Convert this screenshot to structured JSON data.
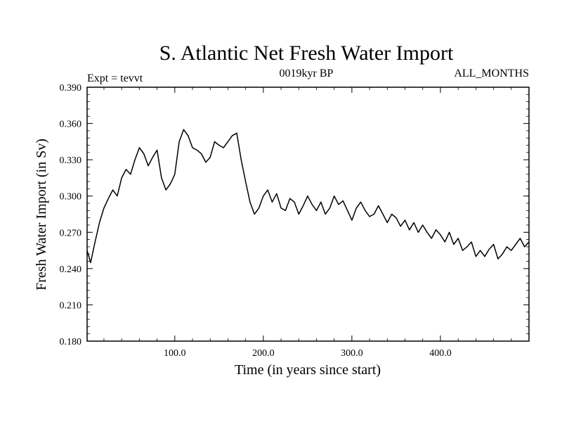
{
  "header": {
    "title": "S. Atlantic Net Fresh Water Import",
    "left_label": "Expt = tevvt",
    "center_label": "0019kyr BP",
    "right_label": "ALL_MONTHS"
  },
  "chart_data": {
    "type": "line",
    "title": "S. Atlantic Net Fresh Water Import",
    "xlabel": "Time (in years since start)",
    "ylabel": "Fresh Water Import (in Sv)",
    "xlim": [
      1,
      500
    ],
    "ylim": [
      0.18,
      0.39
    ],
    "xticks": [
      100,
      200,
      300,
      400
    ],
    "xtick_labels": [
      "100.0",
      "200.0",
      "300.0",
      "400.0"
    ],
    "yticks": [
      0.18,
      0.21,
      0.24,
      0.27,
      0.3,
      0.33,
      0.36,
      0.39
    ],
    "ytick_labels": [
      "0.180",
      "0.210",
      "0.240",
      "0.270",
      "0.300",
      "0.330",
      "0.360",
      "0.390"
    ],
    "grid": false,
    "line_color": "#000000",
    "series": [
      {
        "x": [
          1,
          5,
          10,
          15,
          20,
          25,
          30,
          35,
          40,
          45,
          50,
          55,
          60,
          65,
          70,
          75,
          80,
          85,
          90,
          95,
          100,
          105,
          110,
          115,
          120,
          125,
          130,
          135,
          140,
          145,
          150,
          155,
          160,
          165,
          170,
          175,
          180,
          185,
          190,
          195,
          200,
          205,
          210,
          215,
          220,
          225,
          230,
          235,
          240,
          245,
          250,
          255,
          260,
          265,
          270,
          275,
          280,
          285,
          290,
          295,
          300,
          305,
          310,
          315,
          320,
          325,
          330,
          335,
          340,
          345,
          350,
          355,
          360,
          365,
          370,
          375,
          380,
          385,
          390,
          395,
          400,
          405,
          410,
          415,
          420,
          425,
          430,
          435,
          440,
          445,
          450,
          455,
          460,
          465,
          470,
          475,
          480,
          485,
          490,
          495,
          500
        ],
        "values": [
          0.255,
          0.245,
          0.262,
          0.278,
          0.29,
          0.298,
          0.305,
          0.3,
          0.315,
          0.322,
          0.318,
          0.33,
          0.34,
          0.335,
          0.325,
          0.332,
          0.338,
          0.315,
          0.305,
          0.31,
          0.318,
          0.345,
          0.355,
          0.35,
          0.34,
          0.338,
          0.335,
          0.328,
          0.332,
          0.345,
          0.342,
          0.34,
          0.345,
          0.35,
          0.352,
          0.33,
          0.312,
          0.295,
          0.285,
          0.29,
          0.3,
          0.305,
          0.295,
          0.302,
          0.29,
          0.288,
          0.298,
          0.295,
          0.285,
          0.292,
          0.3,
          0.293,
          0.288,
          0.295,
          0.285,
          0.29,
          0.3,
          0.293,
          0.296,
          0.288,
          0.28,
          0.29,
          0.295,
          0.288,
          0.283,
          0.285,
          0.292,
          0.285,
          0.278,
          0.285,
          0.282,
          0.275,
          0.28,
          0.272,
          0.278,
          0.27,
          0.276,
          0.27,
          0.265,
          0.272,
          0.268,
          0.262,
          0.27,
          0.26,
          0.265,
          0.255,
          0.258,
          0.262,
          0.25,
          0.255,
          0.25,
          0.256,
          0.26,
          0.248,
          0.252,
          0.258,
          0.255,
          0.26,
          0.265,
          0.258,
          0.262
        ]
      }
    ]
  }
}
